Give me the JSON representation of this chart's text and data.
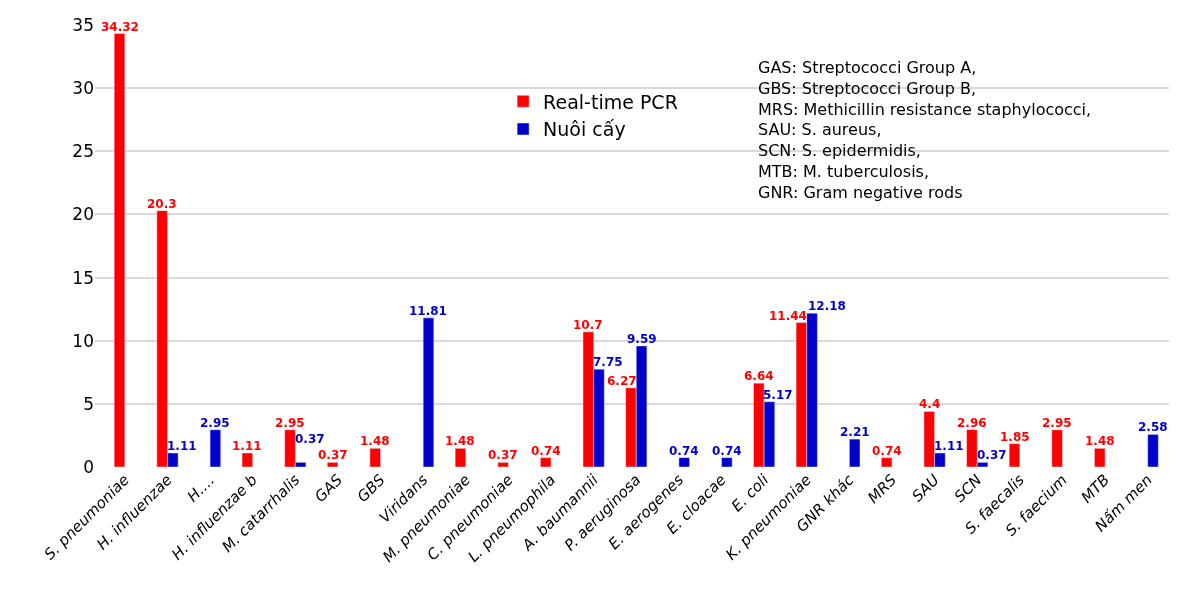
{
  "chart_data": {
    "type": "bar",
    "categories": [
      "S. pneumoniae",
      "H. influenzae",
      "H.…",
      "H. influenzae b",
      "M. catarrhalis",
      "GAS",
      "GBS",
      "Viridans",
      "M. pneumoniae",
      "C. pneumoniae",
      "L. pneumophila",
      "A. baumannii",
      "P. aeruginosa",
      "E. aerogenes",
      "E. cloacae",
      "E. coli",
      "K. pneumoniae",
      "GNR khác",
      "MRS",
      "SAU",
      "SCN",
      "S. faecalis",
      "S. faecium",
      "MTB",
      "Nấm men"
    ],
    "series": [
      {
        "name": "Real-time PCR",
        "color": "#ff0000",
        "values": [
          34.32,
          20.3,
          null,
          1.11,
          2.95,
          0.37,
          1.48,
          null,
          1.48,
          0.37,
          0.74,
          10.7,
          6.27,
          null,
          null,
          6.64,
          11.44,
          null,
          0.74,
          4.4,
          2.96,
          1.85,
          2.95,
          1.48,
          null
        ]
      },
      {
        "name": "Nuôi cấy",
        "color": "#0000cc",
        "values": [
          null,
          1.11,
          2.95,
          null,
          0.37,
          null,
          null,
          11.81,
          null,
          null,
          null,
          7.75,
          9.59,
          0.74,
          0.74,
          5.17,
          12.18,
          2.21,
          null,
          1.11,
          0.37,
          null,
          null,
          null,
          2.58
        ]
      }
    ],
    "ylim": [
      0,
      35
    ],
    "yticks": [
      0,
      5,
      10,
      15,
      20,
      25,
      30,
      35
    ],
    "grid": "y",
    "legend": "top",
    "data_labels": true,
    "annotations": [
      "GAS: Streptococci Group A,\nGBS: Streptococci Group B,\nMRS: Methicillin resistance staphylococci,\nSAU: S. aureus,\nSCN: S. epidermidis,\nMTB: M. tuberculosis,\nGNR: Gram negative rods"
    ]
  }
}
